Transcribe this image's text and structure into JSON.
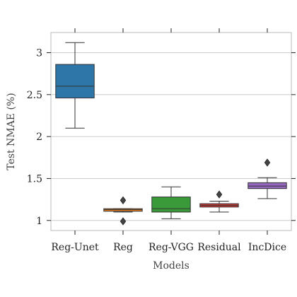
{
  "chart_data": {
    "type": "box",
    "xlabel": "Models",
    "ylabel": "Test NMAE (%)",
    "ylim": [
      0.88,
      3.24
    ],
    "yticks": [
      1,
      1.5,
      2,
      2.5,
      3
    ],
    "ytick_labels": [
      "1",
      "1.5",
      "2",
      "2.5",
      "3"
    ],
    "grid": "horizontal",
    "categories": [
      "Reg-Unet",
      "Reg",
      "Reg-VGG",
      "Residual",
      "IncDice"
    ],
    "boxes": [
      {
        "name": "Reg-Unet",
        "color": "#2e75a8",
        "whisker_low": 2.1,
        "q1": 2.46,
        "median": 2.6,
        "q3": 2.86,
        "whisker_high": 3.12,
        "outliers": []
      },
      {
        "name": "Reg",
        "color": "#f07f18",
        "whisker_low": 1.1,
        "q1": 1.11,
        "median": 1.13,
        "q3": 1.14,
        "whisker_high": 1.14,
        "outliers": [
          1.24,
          0.99
        ]
      },
      {
        "name": "Reg-VGG",
        "color": "#3a9a3a",
        "whisker_low": 1.02,
        "q1": 1.1,
        "median": 1.14,
        "q3": 1.28,
        "whisker_high": 1.4,
        "outliers": []
      },
      {
        "name": "Residual",
        "color": "#cc3a3a",
        "whisker_low": 1.1,
        "q1": 1.16,
        "median": 1.18,
        "q3": 1.2,
        "whisker_high": 1.23,
        "outliers": [
          1.31
        ]
      },
      {
        "name": "IncDice",
        "color": "#9467bd",
        "whisker_low": 1.26,
        "q1": 1.38,
        "median": 1.41,
        "q3": 1.45,
        "whisker_high": 1.51,
        "outliers": [
          1.69
        ]
      }
    ]
  }
}
